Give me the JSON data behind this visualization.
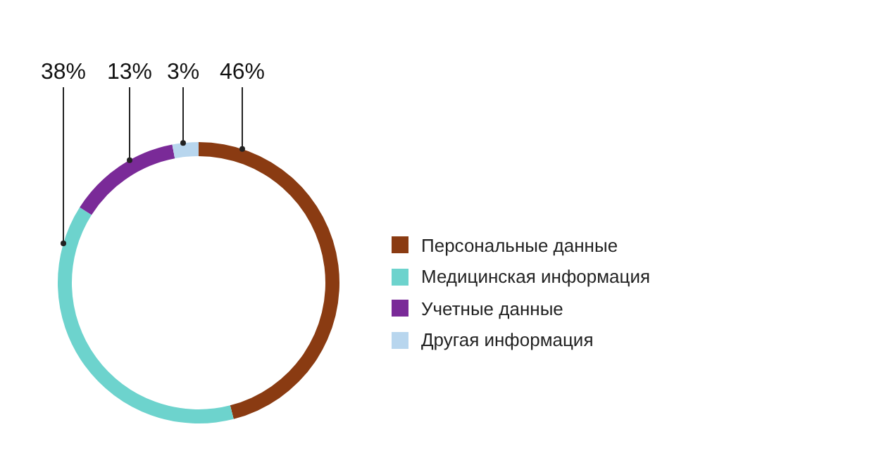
{
  "chart_data": {
    "type": "donut",
    "categories": [
      "Персональные данные",
      "Медицинская информация",
      "Учетные данные",
      "Другая информация"
    ],
    "values": [
      46,
      38,
      13,
      3
    ],
    "colors": [
      "#8a3b12",
      "#6dd3cd",
      "#7a2a98",
      "#b8d6ee"
    ],
    "value_labels": [
      "46%",
      "38%",
      "13%",
      "3%"
    ],
    "legend": "right"
  }
}
